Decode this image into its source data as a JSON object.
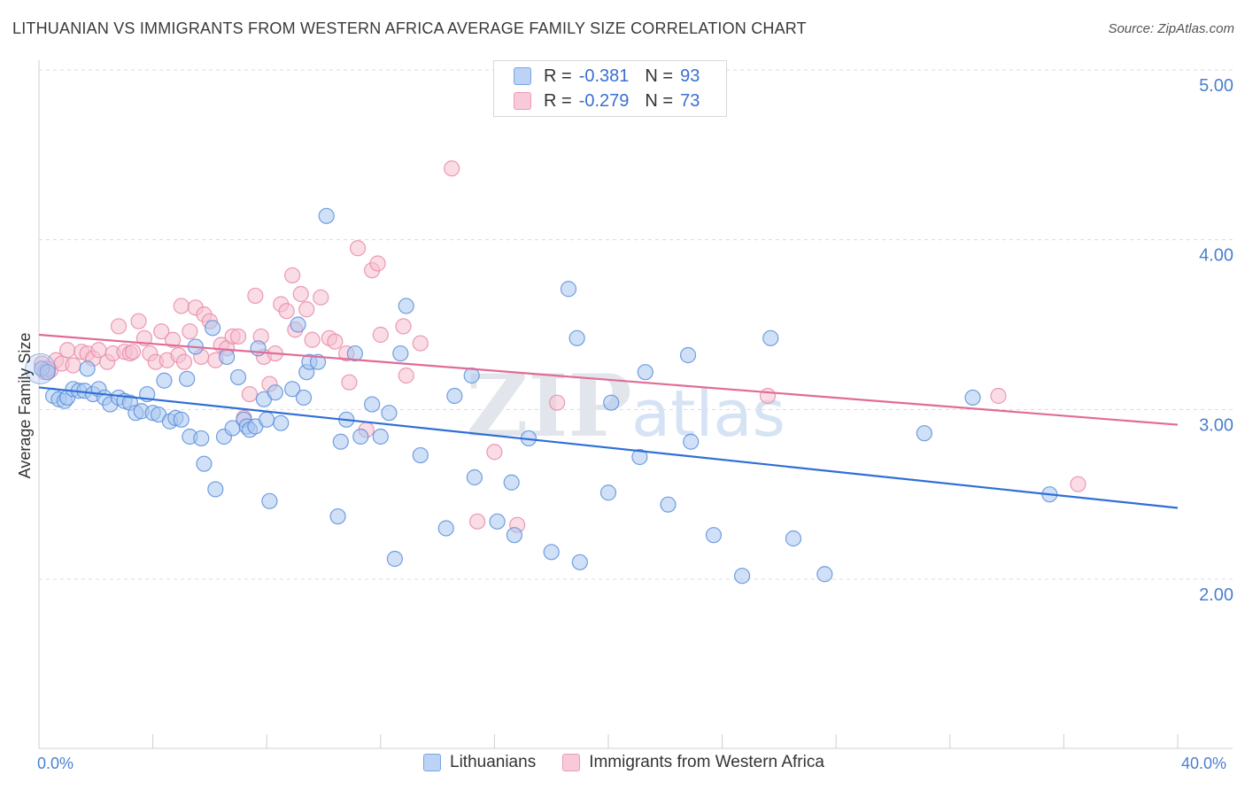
{
  "header": {
    "title": "LITHUANIAN VS IMMIGRANTS FROM WESTERN AFRICA AVERAGE FAMILY SIZE CORRELATION CHART",
    "source": "Source: ZipAtlas.com"
  },
  "legend": {
    "rows": [
      {
        "r_label": "R =",
        "r_value": "-0.381",
        "n_label": "N =",
        "n_value": "93"
      },
      {
        "r_label": "R =",
        "r_value": "-0.279",
        "n_label": "N =",
        "n_value": "73"
      }
    ]
  },
  "watermark": {
    "zip": "ZIP",
    "atlas": "atlas"
  },
  "colors": {
    "blue_fill": "#a9c6f1",
    "blue_stroke": "#5a8fdc",
    "blue_line": "#2f6fd6",
    "pink_fill": "#f6bfd0",
    "pink_stroke": "#e88aa8",
    "pink_line": "#e26b96",
    "tick_text": "#4a7fd1",
    "grid": "#dcdcdc"
  },
  "chart_data": {
    "type": "scatter",
    "title": "LITHUANIAN VS IMMIGRANTS FROM WESTERN AFRICA AVERAGE FAMILY SIZE CORRELATION CHART",
    "xlabel": "",
    "ylabel": "Average Family Size",
    "xlim": [
      0,
      40
    ],
    "ylim": [
      1.0,
      5.15
    ],
    "x_tick_labels": [
      "0.0%",
      "40.0%"
    ],
    "y_ticks": [
      2.0,
      3.0,
      4.0,
      5.0
    ],
    "y_tick_labels": [
      "2.00",
      "3.00",
      "4.00",
      "5.00"
    ],
    "grid": "horizontal dashed",
    "legend_placement": "bottom-center",
    "series": [
      {
        "name": "Lithuanians",
        "r": -0.381,
        "n": 93,
        "trend": {
          "x": [
            0,
            40
          ],
          "y": [
            3.13,
            2.42
          ]
        },
        "points": [
          [
            0.1,
            3.24
          ],
          [
            0.3,
            3.22
          ],
          [
            0.5,
            3.08
          ],
          [
            0.7,
            3.06
          ],
          [
            0.9,
            3.05
          ],
          [
            1.0,
            3.07
          ],
          [
            1.2,
            3.12
          ],
          [
            1.4,
            3.11
          ],
          [
            1.6,
            3.11
          ],
          [
            1.7,
            3.24
          ],
          [
            1.9,
            3.09
          ],
          [
            2.1,
            3.12
          ],
          [
            2.3,
            3.07
          ],
          [
            2.5,
            3.03
          ],
          [
            2.8,
            3.07
          ],
          [
            3.0,
            3.05
          ],
          [
            3.2,
            3.04
          ],
          [
            3.4,
            2.98
          ],
          [
            3.6,
            2.99
          ],
          [
            3.8,
            3.09
          ],
          [
            4.0,
            2.98
          ],
          [
            4.2,
            2.97
          ],
          [
            4.4,
            3.17
          ],
          [
            4.6,
            2.93
          ],
          [
            4.8,
            2.95
          ],
          [
            5.0,
            2.94
          ],
          [
            5.2,
            3.18
          ],
          [
            5.3,
            2.84
          ],
          [
            5.5,
            3.37
          ],
          [
            5.7,
            2.83
          ],
          [
            5.8,
            2.68
          ],
          [
            6.1,
            3.48
          ],
          [
            6.2,
            2.53
          ],
          [
            6.5,
            2.84
          ],
          [
            6.6,
            3.31
          ],
          [
            6.8,
            2.89
          ],
          [
            7.0,
            3.19
          ],
          [
            7.2,
            2.94
          ],
          [
            7.3,
            2.9
          ],
          [
            7.4,
            2.88
          ],
          [
            7.6,
            2.9
          ],
          [
            7.7,
            3.36
          ],
          [
            7.9,
            3.06
          ],
          [
            8.0,
            2.94
          ],
          [
            8.1,
            2.46
          ],
          [
            8.3,
            3.1
          ],
          [
            8.5,
            2.92
          ],
          [
            8.9,
            3.12
          ],
          [
            9.1,
            3.5
          ],
          [
            9.3,
            3.07
          ],
          [
            9.4,
            3.22
          ],
          [
            9.5,
            3.28
          ],
          [
            9.8,
            3.28
          ],
          [
            10.1,
            4.14
          ],
          [
            10.5,
            2.37
          ],
          [
            10.6,
            2.81
          ],
          [
            10.8,
            2.94
          ],
          [
            11.1,
            3.33
          ],
          [
            11.3,
            2.84
          ],
          [
            11.7,
            3.03
          ],
          [
            12.0,
            2.84
          ],
          [
            12.3,
            2.98
          ],
          [
            12.5,
            2.12
          ],
          [
            12.7,
            3.33
          ],
          [
            12.9,
            3.61
          ],
          [
            13.4,
            2.73
          ],
          [
            14.3,
            2.3
          ],
          [
            14.6,
            3.08
          ],
          [
            15.2,
            3.2
          ],
          [
            15.3,
            2.6
          ],
          [
            16.1,
            2.34
          ],
          [
            16.6,
            2.57
          ],
          [
            16.7,
            2.26
          ],
          [
            17.2,
            2.83
          ],
          [
            18.0,
            2.16
          ],
          [
            18.6,
            3.71
          ],
          [
            18.9,
            3.42
          ],
          [
            19.0,
            2.1
          ],
          [
            20.0,
            2.51
          ],
          [
            20.1,
            3.04
          ],
          [
            21.1,
            2.72
          ],
          [
            21.3,
            3.22
          ],
          [
            22.1,
            2.44
          ],
          [
            22.8,
            3.32
          ],
          [
            22.9,
            2.81
          ],
          [
            23.7,
            2.26
          ],
          [
            24.7,
            2.02
          ],
          [
            25.7,
            3.42
          ],
          [
            26.5,
            2.24
          ],
          [
            27.6,
            2.03
          ],
          [
            31.1,
            2.86
          ],
          [
            32.8,
            3.07
          ],
          [
            35.5,
            2.5
          ]
        ]
      },
      {
        "name": "Immigrants from Western Africa",
        "r": -0.279,
        "n": 73,
        "trend": {
          "x": [
            0,
            40
          ],
          "y": [
            3.44,
            2.91
          ]
        },
        "points": [
          [
            0.1,
            3.27
          ],
          [
            0.2,
            3.22
          ],
          [
            0.4,
            3.23
          ],
          [
            0.6,
            3.29
          ],
          [
            0.8,
            3.27
          ],
          [
            1.0,
            3.35
          ],
          [
            1.2,
            3.26
          ],
          [
            1.5,
            3.34
          ],
          [
            1.7,
            3.33
          ],
          [
            1.9,
            3.3
          ],
          [
            2.1,
            3.35
          ],
          [
            2.4,
            3.28
          ],
          [
            2.6,
            3.33
          ],
          [
            2.8,
            3.49
          ],
          [
            3.0,
            3.34
          ],
          [
            3.2,
            3.33
          ],
          [
            3.3,
            3.34
          ],
          [
            3.5,
            3.52
          ],
          [
            3.7,
            3.42
          ],
          [
            3.9,
            3.33
          ],
          [
            4.1,
            3.28
          ],
          [
            4.3,
            3.46
          ],
          [
            4.5,
            3.29
          ],
          [
            4.7,
            3.41
          ],
          [
            4.9,
            3.32
          ],
          [
            5.0,
            3.61
          ],
          [
            5.1,
            3.28
          ],
          [
            5.3,
            3.46
          ],
          [
            5.5,
            3.6
          ],
          [
            5.7,
            3.31
          ],
          [
            5.8,
            3.56
          ],
          [
            6.0,
            3.52
          ],
          [
            6.2,
            3.29
          ],
          [
            6.4,
            3.38
          ],
          [
            6.6,
            3.36
          ],
          [
            6.8,
            3.43
          ],
          [
            7.0,
            3.43
          ],
          [
            7.2,
            2.95
          ],
          [
            7.4,
            3.09
          ],
          [
            7.6,
            3.67
          ],
          [
            7.8,
            3.43
          ],
          [
            7.9,
            3.31
          ],
          [
            8.1,
            3.15
          ],
          [
            8.3,
            3.33
          ],
          [
            8.5,
            3.62
          ],
          [
            8.7,
            3.58
          ],
          [
            8.9,
            3.79
          ],
          [
            9.0,
            3.47
          ],
          [
            9.2,
            3.68
          ],
          [
            9.4,
            3.59
          ],
          [
            9.6,
            3.41
          ],
          [
            9.9,
            3.66
          ],
          [
            10.2,
            3.42
          ],
          [
            10.4,
            3.4
          ],
          [
            10.8,
            3.33
          ],
          [
            10.9,
            3.16
          ],
          [
            11.2,
            3.95
          ],
          [
            11.5,
            2.88
          ],
          [
            11.7,
            3.82
          ],
          [
            11.9,
            3.86
          ],
          [
            12.0,
            3.44
          ],
          [
            12.8,
            3.49
          ],
          [
            12.9,
            3.2
          ],
          [
            13.4,
            3.39
          ],
          [
            14.5,
            4.42
          ],
          [
            15.4,
            2.34
          ],
          [
            16.0,
            2.75
          ],
          [
            16.8,
            2.32
          ],
          [
            18.2,
            3.04
          ],
          [
            25.6,
            3.08
          ],
          [
            33.7,
            3.08
          ],
          [
            36.5,
            2.56
          ],
          [
            0.3,
            3.24
          ]
        ]
      }
    ]
  }
}
